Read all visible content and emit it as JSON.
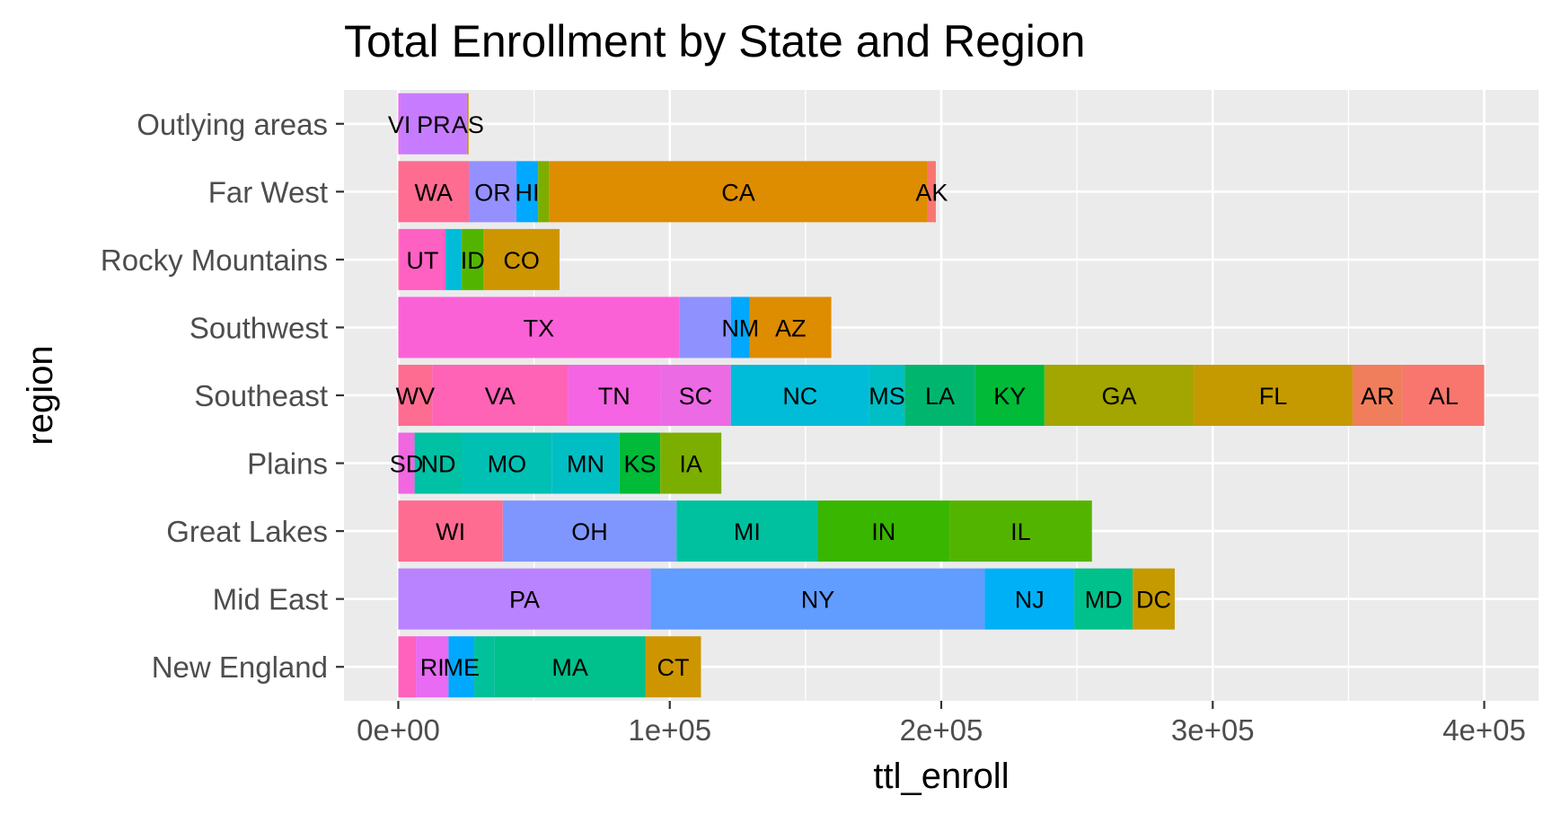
{
  "chart_data": {
    "type": "bar",
    "orientation": "horizontal",
    "stacked": true,
    "title": "Total Enrollment by State and Region",
    "xlabel": "ttl_enroll",
    "ylabel": "region",
    "xlim": [
      -20000,
      420000
    ],
    "x_ticks": [
      0,
      100000,
      200000,
      300000,
      400000
    ],
    "x_tick_labels": [
      "0e+00",
      "1e+05",
      "2e+05",
      "3e+05",
      "4e+05"
    ],
    "grid": true,
    "legend": "none",
    "categories": [
      "Outlying areas",
      "Far West",
      "Rocky Mountains",
      "Southwest",
      "Southeast",
      "Plains",
      "Great Lakes",
      "Mid East",
      "New England"
    ],
    "bars": [
      {
        "region": "Outlying areas",
        "segments": [
          {
            "label": "VI",
            "value": 800,
            "color": "#e76bf3"
          },
          {
            "label": "PR",
            "value": 24500,
            "color": "#c77cff"
          },
          {
            "label": "AS",
            "value": 600,
            "color": "#cd9600"
          }
        ]
      },
      {
        "region": "Far West",
        "segments": [
          {
            "label": "WA",
            "value": 26000,
            "color": "#ff6c91"
          },
          {
            "label": "OR",
            "value": 17500,
            "color": "#9590ff"
          },
          {
            "label": "HI",
            "value": 8000,
            "color": "#00a9ff"
          },
          {
            "label": "",
            "value": 4000,
            "color": "#7cae00"
          },
          {
            "label": "CA",
            "value": 139500,
            "color": "#de8c00"
          },
          {
            "label": "AK",
            "value": 3000,
            "color": "#f8766d"
          }
        ]
      },
      {
        "region": "Rocky Mountains",
        "segments": [
          {
            "label": "",
            "value": 400,
            "color": "#ff6a98"
          },
          {
            "label": "UT",
            "value": 17000,
            "color": "#ff61c3"
          },
          {
            "label": "",
            "value": 6000,
            "color": "#00bcd8"
          },
          {
            "label": "ID",
            "value": 8000,
            "color": "#53b400"
          },
          {
            "label": "CO",
            "value": 28000,
            "color": "#cd9600"
          }
        ]
      },
      {
        "region": "Southwest",
        "segments": [
          {
            "label": "TX",
            "value": 103500,
            "color": "#fb61d7"
          },
          {
            "label": "",
            "value": 19000,
            "color": "#8f91ff"
          },
          {
            "label": "NM",
            "value": 7000,
            "color": "#00a9ff"
          },
          {
            "label": "AZ",
            "value": 30000,
            "color": "#de8c00"
          }
        ]
      },
      {
        "region": "Southeast",
        "segments": [
          {
            "label": "WV",
            "value": 12500,
            "color": "#ff6c91"
          },
          {
            "label": "VA",
            "value": 50000,
            "color": "#ff63b6"
          },
          {
            "label": "TN",
            "value": 34000,
            "color": "#f564e3"
          },
          {
            "label": "SC",
            "value": 26000,
            "color": "#ed6ae5"
          },
          {
            "label": "NC",
            "value": 51000,
            "color": "#00bcd8"
          },
          {
            "label": "MS",
            "value": 13000,
            "color": "#00bfc4"
          },
          {
            "label": "LA",
            "value": 26000,
            "color": "#00b66e"
          },
          {
            "label": "KY",
            "value": 25500,
            "color": "#00ba38"
          },
          {
            "label": "GA",
            "value": 55000,
            "color": "#a3a500"
          },
          {
            "label": "FL",
            "value": 58500,
            "color": "#c49a00"
          },
          {
            "label": "AR",
            "value": 18500,
            "color": "#f07e5c"
          },
          {
            "label": "AL",
            "value": 30000,
            "color": "#f8766d"
          }
        ]
      },
      {
        "region": "Plains",
        "segments": [
          {
            "label": "SD",
            "value": 6000,
            "color": "#f067e0"
          },
          {
            "label": "ND",
            "value": 17500,
            "color": "#00c1a3"
          },
          {
            "label": "MO",
            "value": 33000,
            "color": "#00c0b4"
          },
          {
            "label": "MN",
            "value": 25000,
            "color": "#00bfc4"
          },
          {
            "label": "KS",
            "value": 15000,
            "color": "#00ba38"
          },
          {
            "label": "IA",
            "value": 22500,
            "color": "#7cae00"
          }
        ]
      },
      {
        "region": "Great Lakes",
        "segments": [
          {
            "label": "WI",
            "value": 38500,
            "color": "#ff6c91"
          },
          {
            "label": "OH",
            "value": 64000,
            "color": "#7f96ff"
          },
          {
            "label": "MI",
            "value": 52000,
            "color": "#00c19f"
          },
          {
            "label": "IN",
            "value": 48500,
            "color": "#39b600"
          },
          {
            "label": "IL",
            "value": 52500,
            "color": "#53b400"
          }
        ]
      },
      {
        "region": "Mid East",
        "segments": [
          {
            "label": "PA",
            "value": 93000,
            "color": "#b983ff"
          },
          {
            "label": "NY",
            "value": 123000,
            "color": "#619cff"
          },
          {
            "label": "NJ",
            "value": 33000,
            "color": "#00b0f6"
          },
          {
            "label": "MD",
            "value": 21500,
            "color": "#00c08b"
          },
          {
            "label": "DC",
            "value": 15500,
            "color": "#c49a00"
          }
        ]
      },
      {
        "region": "New England",
        "segments": [
          {
            "label": "",
            "value": 6500,
            "color": "#ff62bc"
          },
          {
            "label": "RI",
            "value": 12000,
            "color": "#e76bf3"
          },
          {
            "label": "ME",
            "value": 9500,
            "color": "#00a9ff"
          },
          {
            "label": "",
            "value": 7500,
            "color": "#00c19a"
          },
          {
            "label": "MA",
            "value": 55500,
            "color": "#00c08b"
          },
          {
            "label": "CT",
            "value": 20500,
            "color": "#cd9600"
          }
        ]
      }
    ]
  }
}
